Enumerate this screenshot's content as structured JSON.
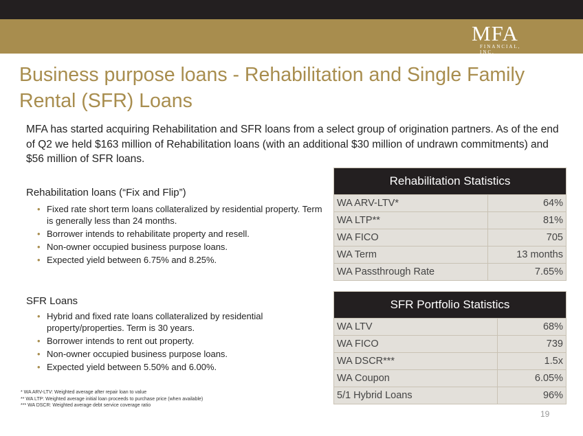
{
  "logo": {
    "word": "MFA",
    "sub": "FINANCIAL, INC."
  },
  "title": "Business purpose loans - Rehabilitation and Single Family Rental (SFR) Loans",
  "intro": "MFA has started acquiring Rehabilitation and SFR loans from a select group of origination partners. As of the end of Q2 we held $163 million of Rehabilitation loans (with an additional $30 million of undrawn commitments) and $56 million of SFR loans.",
  "rehab": {
    "heading": "Rehabilitation loans (“Fix and Flip”)",
    "bullets": [
      "Fixed rate short term loans collateralized by residential property. Term is generally less than 24 months.",
      "Borrower intends to rehabilitate property and resell.",
      "Non-owner occupied business purpose loans.",
      "Expected yield between 6.75% and 8.25%."
    ]
  },
  "sfr": {
    "heading": "SFR Loans",
    "bullets": [
      "Hybrid and fixed rate loans collateralized by residential property/properties.  Term is 30 years.",
      "Borrower intends to rent out property.",
      "Non-owner occupied business purpose loans.",
      "Expected yield between 5.50% and 6.00%."
    ]
  },
  "rehab_stats": {
    "title": "Rehabilitation Statistics",
    "rows": [
      {
        "label": "WA ARV-LTV*",
        "value": "64%"
      },
      {
        "label": "WA LTP**",
        "value": "81%"
      },
      {
        "label": "WA FICO",
        "value": "705"
      },
      {
        "label": "WA Term",
        "value": "13 months"
      },
      {
        "label": "WA Passthrough Rate",
        "value": "7.65%"
      }
    ]
  },
  "sfr_stats": {
    "title": "SFR Portfolio Statistics",
    "rows": [
      {
        "label": "WA LTV",
        "value": "68%"
      },
      {
        "label": "WA FICO",
        "value": "739"
      },
      {
        "label": "WA DSCR***",
        "value": "1.5x"
      },
      {
        "label": "WA Coupon",
        "value": "6.05%"
      },
      {
        "label": "5/1 Hybrid Loans",
        "value": "96%"
      }
    ]
  },
  "footnotes": [
    "* WA ARV-LTV: Weighted average after repair loan to value",
    "** WA LTP: Weighted average initial loan proceeds to purchase price (when available)",
    "*** WA DSCR: Weighted average debt service coverage ratio"
  ],
  "page_number": "19",
  "colors": {
    "gold": "#a88d4e",
    "dark": "#231f20",
    "row_bg": "#e3e0da"
  }
}
